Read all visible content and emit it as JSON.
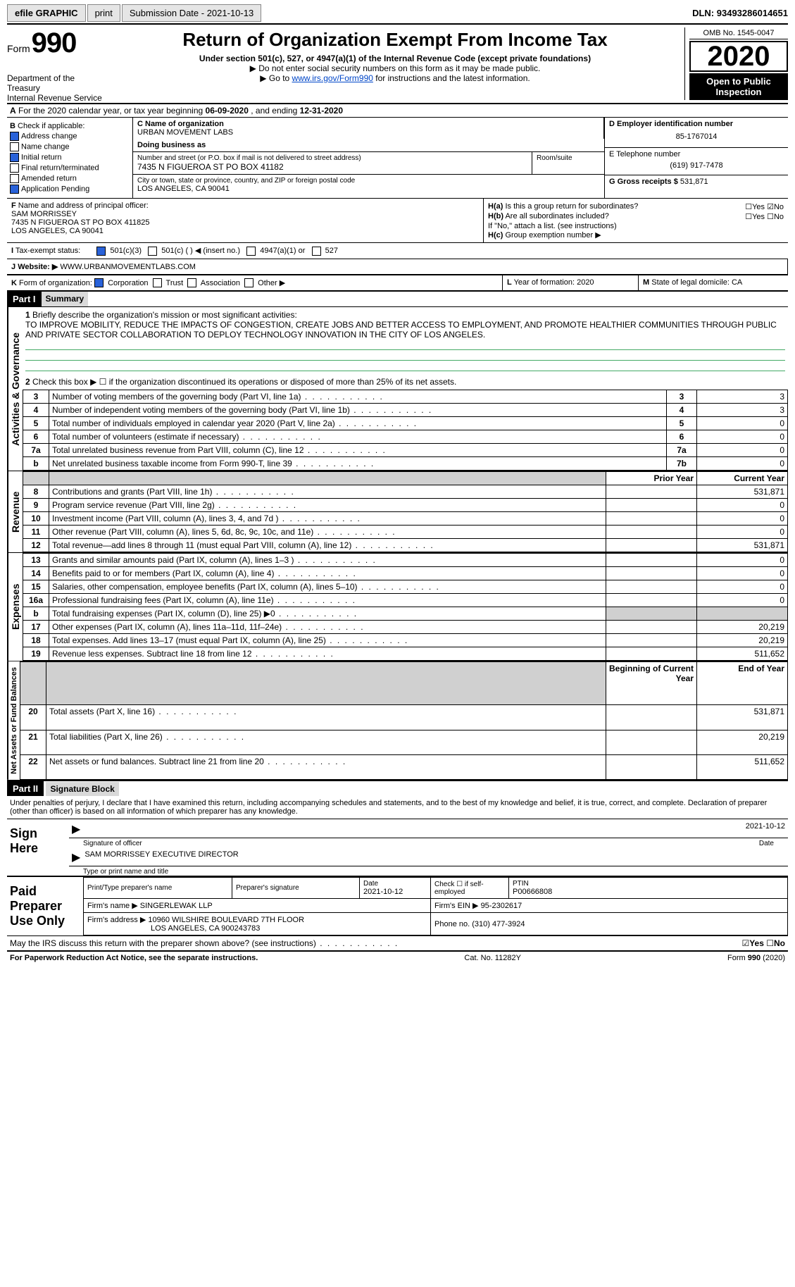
{
  "topbar": {
    "efile": "efile GRAPHIC",
    "print": "print",
    "subdate_label": "Submission Date - ",
    "subdate": "2021-10-13",
    "dln_label": "DLN: ",
    "dln": "93493286014651"
  },
  "header": {
    "form_prefix": "Form",
    "form_num": "990",
    "title": "Return of Organization Exempt From Income Tax",
    "sub": "Under section 501(c), 527, or 4947(a)(1) of the Internal Revenue Code (except private foundations)",
    "arrow1": "▶ Do not enter social security numbers on this form as it may be made public.",
    "arrow2_pre": "▶ Go to ",
    "arrow2_link": "www.irs.gov/Form990",
    "arrow2_post": " for instructions and the latest information.",
    "dept1": "Department of the Treasury",
    "dept2": "Internal Revenue Service",
    "omb": "OMB No. 1545-0047",
    "year": "2020",
    "open": "Open to Public Inspection"
  },
  "rowA": {
    "pre": "A",
    "text": "For the 2020 calendar year, or tax year beginning ",
    "d1": "06-09-2020",
    "mid": " , and ending ",
    "d2": "12-31-2020"
  },
  "colB": {
    "label": "B",
    "title": "Check if applicable:",
    "items": [
      {
        "text": "Address change",
        "checked": true
      },
      {
        "text": "Name change",
        "checked": false
      },
      {
        "text": "Initial return",
        "checked": true
      },
      {
        "text": "Final return/terminated",
        "checked": false
      },
      {
        "text": "Amended return",
        "checked": false
      },
      {
        "text": "Application Pending",
        "checked": true
      }
    ]
  },
  "colC": {
    "name_label": "C Name of organization",
    "name": "URBAN MOVEMENT LABS",
    "dba_label": "Doing business as",
    "dba": "",
    "street_label": "Number and street (or P.O. box if mail is not delivered to street address)",
    "room_label": "Room/suite",
    "street": "7435 N FIGUEROA ST PO BOX 41182",
    "city_label": "City or town, state or province, country, and ZIP or foreign postal code",
    "city": "LOS ANGELES, CA  90041"
  },
  "colD": {
    "ein_label": "D Employer identification number",
    "ein": "85-1767014",
    "tel_label": "E Telephone number",
    "tel": "(619) 917-7478",
    "gross_label": "G Gross receipts $",
    "gross": "531,871"
  },
  "rowF": {
    "label": "F",
    "text": "Name and address of principal officer:",
    "name": "SAM MORRISSEY",
    "addr1": "7435 N FIGUEROA ST PO BOX 411825",
    "addr2": "LOS ANGELES, CA  90041"
  },
  "rowH": {
    "ha_label": "H(a)",
    "ha_text": "Is this a group return for subordinates?",
    "yes": "Yes",
    "no": "No",
    "hb_label": "H(b)",
    "hb_text": "Are all subordinates included?",
    "hb_note": "If \"No,\" attach a list. (see instructions)",
    "hc_label": "H(c)",
    "hc_text": "Group exemption number ▶"
  },
  "rowI": {
    "label": "I",
    "text": "Tax-exempt status:",
    "opts": [
      "501(c)(3)",
      "501(c) (  ) ◀ (insert no.)",
      "4947(a)(1) or",
      "527"
    ]
  },
  "rowJ": {
    "label": "J",
    "text": "Website: ▶",
    "val": "WWW.URBANMOVEMENTLABS.COM"
  },
  "rowK": {
    "label": "K",
    "text": "Form of organization:",
    "opts": [
      "Corporation",
      "Trust",
      "Association",
      "Other ▶"
    ],
    "l_label": "L",
    "l_text": "Year of formation: ",
    "l_val": "2020",
    "m_label": "M",
    "m_text": "State of legal domicile: ",
    "m_val": "CA"
  },
  "part1": {
    "hdr": "Part I",
    "title": "Summary",
    "q1_num": "1",
    "q1": "Briefly describe the organization's mission or most significant activities:",
    "mission": "TO IMPROVE MOBILITY, REDUCE THE IMPACTS OF CONGESTION, CREATE JOBS AND BETTER ACCESS TO EMPLOYMENT, AND PROMOTE HEALTHIER COMMUNITIES THROUGH PUBLIC AND PRIVATE SECTOR COLLABORATION TO DEPLOY TECHNOLOGY INNOVATION IN THE CITY OF LOS ANGELES.",
    "q2_num": "2",
    "q2": "Check this box ▶ ☐ if the organization discontinued its operations or disposed of more than 25% of its net assets.",
    "gov_rows": [
      {
        "n": "3",
        "d": "Number of voting members of the governing body (Part VI, line 1a)",
        "box": "3",
        "v": "3"
      },
      {
        "n": "4",
        "d": "Number of independent voting members of the governing body (Part VI, line 1b)",
        "box": "4",
        "v": "3"
      },
      {
        "n": "5",
        "d": "Total number of individuals employed in calendar year 2020 (Part V, line 2a)",
        "box": "5",
        "v": "0"
      },
      {
        "n": "6",
        "d": "Total number of volunteers (estimate if necessary)",
        "box": "6",
        "v": "0"
      },
      {
        "n": "7a",
        "d": "Total unrelated business revenue from Part VIII, column (C), line 12",
        "box": "7a",
        "v": "0"
      },
      {
        "n": "b",
        "d": "Net unrelated business taxable income from Form 990-T, line 39",
        "box": "7b",
        "v": "0"
      }
    ],
    "py_hdr": "Prior Year",
    "cy_hdr": "Current Year",
    "rev_rows": [
      {
        "n": "8",
        "d": "Contributions and grants (Part VIII, line 1h)",
        "py": "",
        "cy": "531,871"
      },
      {
        "n": "9",
        "d": "Program service revenue (Part VIII, line 2g)",
        "py": "",
        "cy": "0"
      },
      {
        "n": "10",
        "d": "Investment income (Part VIII, column (A), lines 3, 4, and 7d )",
        "py": "",
        "cy": "0"
      },
      {
        "n": "11",
        "d": "Other revenue (Part VIII, column (A), lines 5, 6d, 8c, 9c, 10c, and 11e)",
        "py": "",
        "cy": "0"
      },
      {
        "n": "12",
        "d": "Total revenue—add lines 8 through 11 (must equal Part VIII, column (A), line 12)",
        "py": "",
        "cy": "531,871"
      }
    ],
    "exp_rows": [
      {
        "n": "13",
        "d": "Grants and similar amounts paid (Part IX, column (A), lines 1–3 )",
        "py": "",
        "cy": "0"
      },
      {
        "n": "14",
        "d": "Benefits paid to or for members (Part IX, column (A), line 4)",
        "py": "",
        "cy": "0"
      },
      {
        "n": "15",
        "d": "Salaries, other compensation, employee benefits (Part IX, column (A), lines 5–10)",
        "py": "",
        "cy": "0"
      },
      {
        "n": "16a",
        "d": "Professional fundraising fees (Part IX, column (A), line 11e)",
        "py": "",
        "cy": "0"
      },
      {
        "n": "b",
        "d": "Total fundraising expenses (Part IX, column (D), line 25) ▶0",
        "py": "shade",
        "cy": "shade"
      },
      {
        "n": "17",
        "d": "Other expenses (Part IX, column (A), lines 11a–11d, 11f–24e)",
        "py": "",
        "cy": "20,219"
      },
      {
        "n": "18",
        "d": "Total expenses. Add lines 13–17 (must equal Part IX, column (A), line 25)",
        "py": "",
        "cy": "20,219"
      },
      {
        "n": "19",
        "d": "Revenue less expenses. Subtract line 18 from line 12",
        "py": "",
        "cy": "511,652"
      }
    ],
    "boy_hdr": "Beginning of Current Year",
    "eoy_hdr": "End of Year",
    "net_rows": [
      {
        "n": "20",
        "d": "Total assets (Part X, line 16)",
        "py": "",
        "cy": "531,871"
      },
      {
        "n": "21",
        "d": "Total liabilities (Part X, line 26)",
        "py": "",
        "cy": "20,219"
      },
      {
        "n": "22",
        "d": "Net assets or fund balances. Subtract line 21 from line 20",
        "py": "",
        "cy": "511,652"
      }
    ],
    "side_gov": "Activities & Governance",
    "side_rev": "Revenue",
    "side_exp": "Expenses",
    "side_net": "Net Assets or Fund Balances"
  },
  "part2": {
    "hdr": "Part II",
    "title": "Signature Block",
    "perjury": "Under penalties of perjury, I declare that I have examined this return, including accompanying schedules and statements, and to the best of my knowledge and belief, it is true, correct, and complete. Declaration of preparer (other than officer) is based on all information of which preparer has any knowledge.",
    "sign_here": "Sign Here",
    "sig_date": "2021-10-12",
    "sig_label": "Signature of officer",
    "date_label": "Date",
    "name": "SAM MORRISSEY EXECUTIVE DIRECTOR",
    "name_label": "Type or print name and title"
  },
  "prep": {
    "title": "Paid Preparer Use Only",
    "h1": "Print/Type preparer's name",
    "h2": "Preparer's signature",
    "h3": "Date",
    "h3v": "2021-10-12",
    "h4": "Check ☐ if self-employed",
    "h5": "PTIN",
    "h5v": "P00666808",
    "firm_label": "Firm's name  ▶",
    "firm": "SINGERLEWAK LLP",
    "ein_label": "Firm's EIN ▶",
    "ein": "95-2302617",
    "addr_label": "Firm's address ▶",
    "addr1": "10960 WILSHIRE BOULEVARD 7TH FLOOR",
    "addr2": "LOS ANGELES, CA  900243783",
    "phone_label": "Phone no.",
    "phone": "(310) 477-3924"
  },
  "footer": {
    "discuss": "May the IRS discuss this return with the preparer shown above? (see instructions)",
    "yes": "Yes",
    "no": "No",
    "paperwork": "For Paperwork Reduction Act Notice, see the separate instructions.",
    "cat": "Cat. No. 11282Y",
    "form": "Form 990 (2020)"
  }
}
